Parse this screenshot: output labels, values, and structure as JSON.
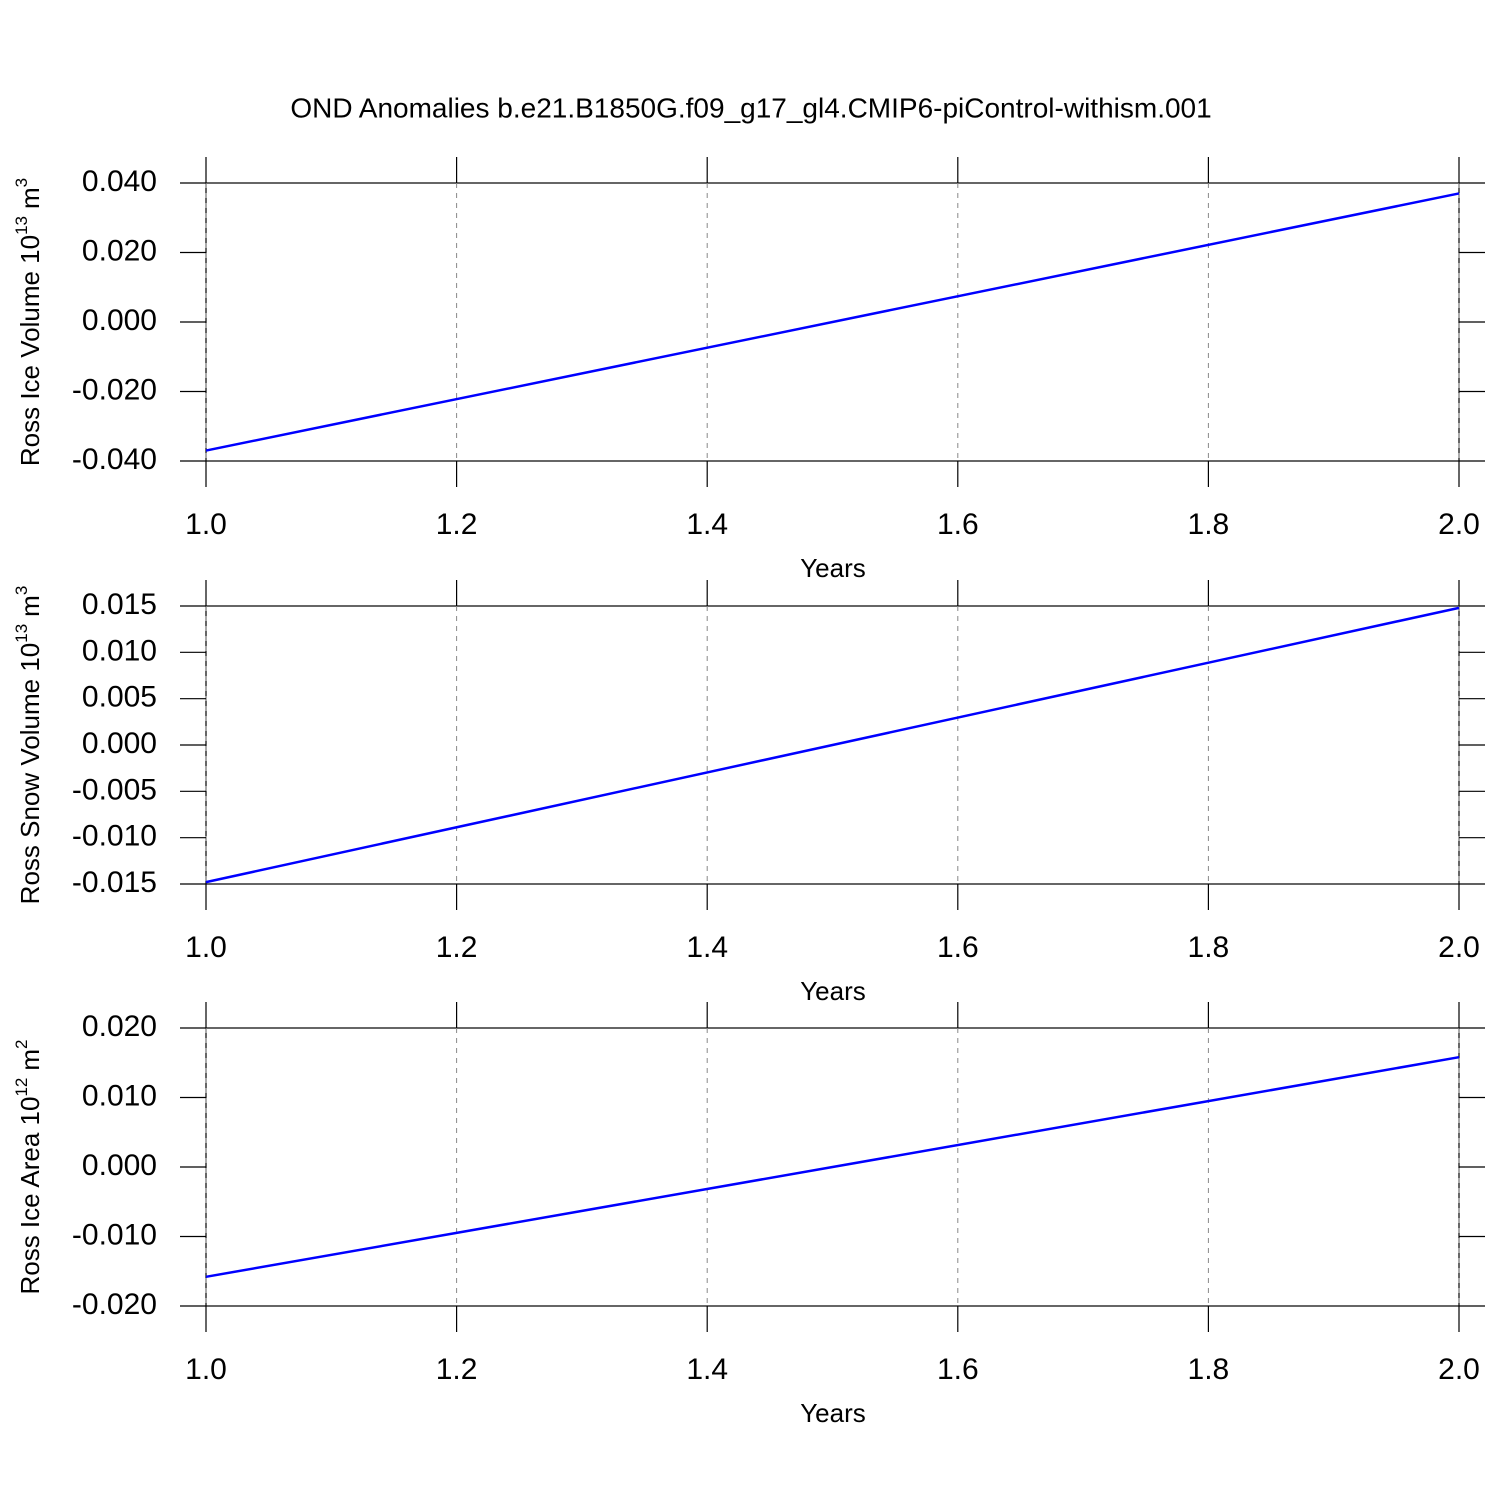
{
  "chart_data": [
    {
      "type": "line",
      "title": "OND Anomalies b.e21.B1850G.f09_g17_gl4.CMIP6-piControl-withism.001",
      "ylabel": [
        "Ross Ice Volume 10",
        "13",
        "m",
        "3"
      ],
      "xlabel": "Years",
      "x": [
        1.0,
        2.0
      ],
      "values": [
        -0.037,
        0.037
      ],
      "color": "#0000ff",
      "xlim": [
        1.0,
        2.0
      ],
      "xticks": [
        {
          "value": 1.0,
          "label": "1.0"
        },
        1.2,
        1.4,
        1.6,
        1.8,
        {
          "value": 2.0,
          "label": "2.0"
        }
      ],
      "ylim": [
        -0.04,
        0.04
      ],
      "yticks": [
        {
          "value": -0.04,
          "label": "-0.040"
        },
        {
          "value": -0.02,
          "label": "-0.020"
        },
        {
          "value": 0,
          "label": "0.000"
        },
        {
          "value": 0.02,
          "label": "0.020"
        },
        {
          "value": 0.04,
          "label": "0.040"
        }
      ],
      "grid": "x"
    },
    {
      "type": "line",
      "ylabel": [
        "Ross Snow Volume 10",
        "13",
        "m",
        "3"
      ],
      "xlabel": "Years",
      "x": [
        1.0,
        2.0
      ],
      "values": [
        -0.0148,
        0.0148
      ],
      "color": "#0000ff",
      "xlim": [
        1.0,
        2.0
      ],
      "xticks": [
        {
          "value": 1.0,
          "label": "1.0"
        },
        1.2,
        1.4,
        1.6,
        1.8,
        {
          "value": 2.0,
          "label": "2.0"
        }
      ],
      "ylim": [
        -0.015,
        0.015
      ],
      "yticks": [
        -0.015,
        {
          "value": -0.01,
          "label": "-0.010"
        },
        -0.005,
        {
          "value": 0,
          "label": "0.000"
        },
        0.005,
        {
          "value": 0.01,
          "label": "0.010"
        },
        0.015
      ],
      "grid": "x"
    },
    {
      "type": "line",
      "ylabel": [
        "Ross Ice Area 10",
        "12",
        "m",
        "2"
      ],
      "xlabel": "Years",
      "x": [
        1.0,
        2.0
      ],
      "values": [
        -0.0158,
        0.0158
      ],
      "color": "#0000ff",
      "xlim": [
        1.0,
        2.0
      ],
      "xticks": [
        {
          "value": 1.0,
          "label": "1.0"
        },
        1.2,
        1.4,
        1.6,
        1.8,
        {
          "value": 2.0,
          "label": "2.0"
        }
      ],
      "ylim": [
        -0.02,
        0.02
      ],
      "yticks": [
        {
          "value": -0.02,
          "label": "-0.020"
        },
        {
          "value": -0.01,
          "label": "-0.010"
        },
        {
          "value": 0,
          "label": "0.000"
        },
        {
          "value": 0.01,
          "label": "0.010"
        },
        {
          "value": 0.02,
          "label": "0.020"
        }
      ],
      "grid": "x"
    }
  ]
}
